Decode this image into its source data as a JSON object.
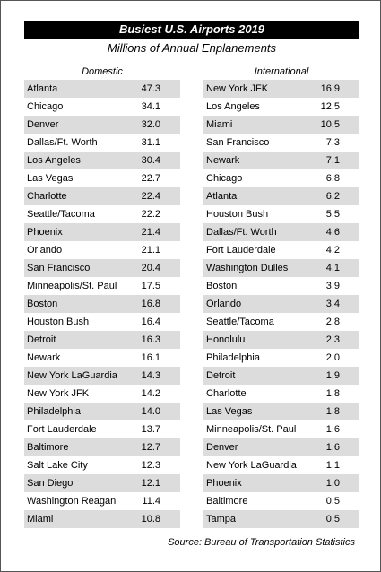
{
  "header": {
    "title": "Busiest U.S. Airports 2019",
    "subtitle": "Millions of Annual Enplanements"
  },
  "tables": [
    {
      "heading": "Domestic",
      "rows": [
        [
          "Atlanta",
          "47.3"
        ],
        [
          "Chicago",
          "34.1"
        ],
        [
          "Denver",
          "32.0"
        ],
        [
          "Dallas/Ft. Worth",
          "31.1"
        ],
        [
          "Los Angeles",
          "30.4"
        ],
        [
          "Las Vegas",
          "22.7"
        ],
        [
          "Charlotte",
          "22.4"
        ],
        [
          "Seattle/Tacoma",
          "22.2"
        ],
        [
          "Phoenix",
          "21.4"
        ],
        [
          "Orlando",
          "21.1"
        ],
        [
          "San Francisco",
          "20.4"
        ],
        [
          "Minneapolis/St. Paul",
          "17.5"
        ],
        [
          "Boston",
          "16.8"
        ],
        [
          "Houston Bush",
          "16.4"
        ],
        [
          "Detroit",
          "16.3"
        ],
        [
          "Newark",
          "16.1"
        ],
        [
          "New York LaGuardia",
          "14.3"
        ],
        [
          "New York JFK",
          "14.2"
        ],
        [
          "Philadelphia",
          "14.0"
        ],
        [
          "Fort Lauderdale",
          "13.7"
        ],
        [
          "Baltimore",
          "12.7"
        ],
        [
          "Salt Lake City",
          "12.3"
        ],
        [
          "San Diego",
          "12.1"
        ],
        [
          "Washington Reagan",
          "11.4"
        ],
        [
          "Miami",
          "10.8"
        ]
      ]
    },
    {
      "heading": "International",
      "rows": [
        [
          "New York JFK",
          "16.9"
        ],
        [
          "Los Angeles",
          "12.5"
        ],
        [
          "Miami",
          "10.5"
        ],
        [
          "San Francisco",
          "7.3"
        ],
        [
          "Newark",
          "7.1"
        ],
        [
          "Chicago",
          "6.8"
        ],
        [
          "Atlanta",
          "6.2"
        ],
        [
          "Houston Bush",
          "5.5"
        ],
        [
          "Dallas/Ft. Worth",
          "4.6"
        ],
        [
          "Fort Lauderdale",
          "4.2"
        ],
        [
          "Washington Dulles",
          "4.1"
        ],
        [
          "Boston",
          "3.9"
        ],
        [
          "Orlando",
          "3.4"
        ],
        [
          "Seattle/Tacoma",
          "2.8"
        ],
        [
          "Honolulu",
          "2.3"
        ],
        [
          "Philadelphia",
          "2.0"
        ],
        [
          "Detroit",
          "1.9"
        ],
        [
          "Charlotte",
          "1.8"
        ],
        [
          "Las Vegas",
          "1.8"
        ],
        [
          "Minneapolis/St. Paul",
          "1.6"
        ],
        [
          "Denver",
          "1.6"
        ],
        [
          "New York LaGuardia",
          "1.1"
        ],
        [
          "Phoenix",
          "1.0"
        ],
        [
          "Baltimore",
          "0.5"
        ],
        [
          "Tampa",
          "0.5"
        ]
      ]
    }
  ],
  "source": "Source: Bureau of Transportation Statistics"
}
